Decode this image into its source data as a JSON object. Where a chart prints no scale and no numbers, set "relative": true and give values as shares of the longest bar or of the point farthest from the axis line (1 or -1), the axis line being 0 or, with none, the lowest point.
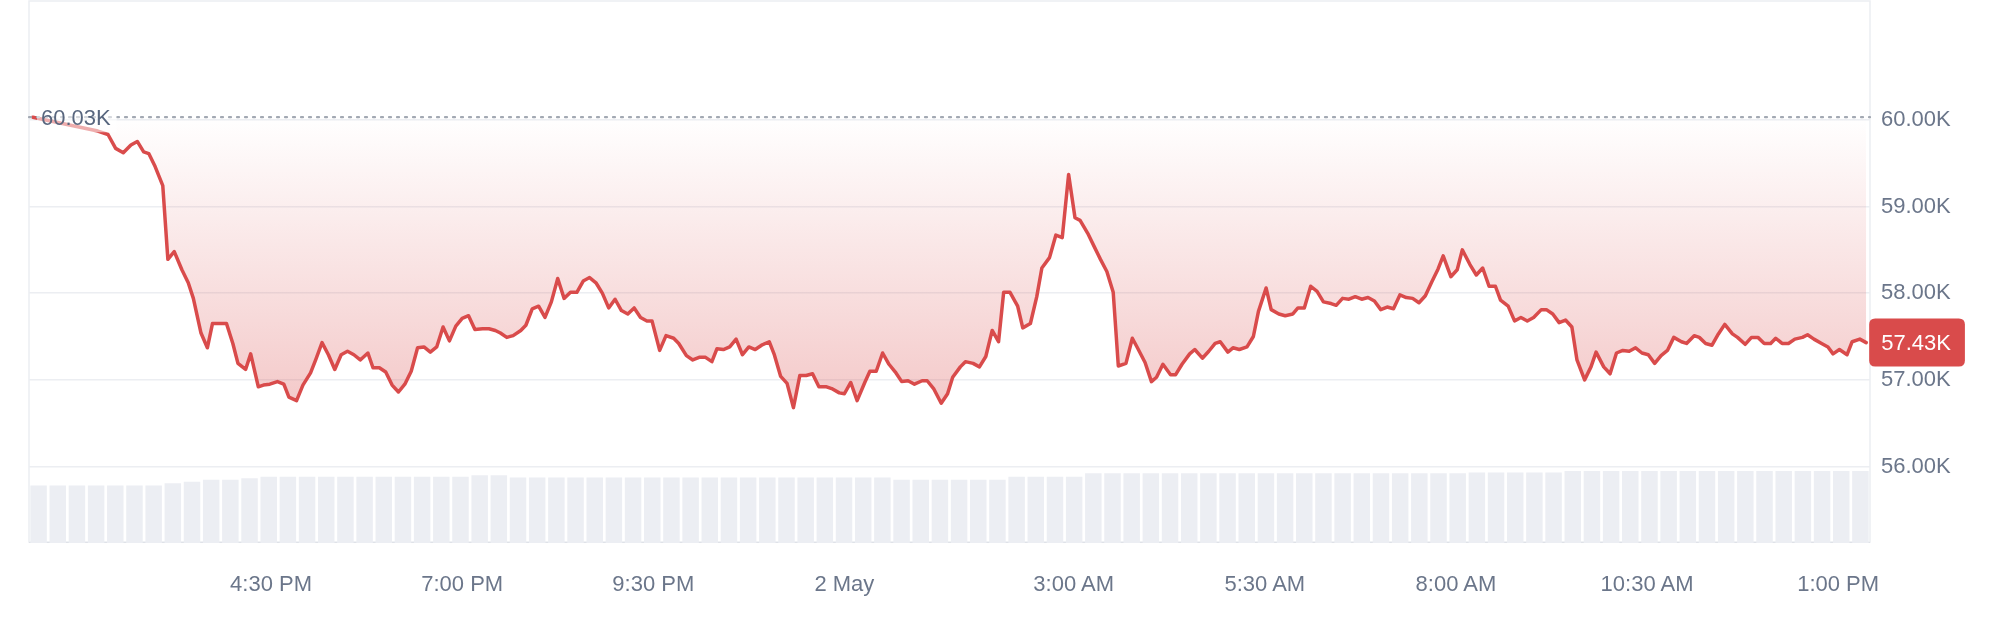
{
  "chart_data": [
    {
      "type": "line",
      "color": "#d94b4b",
      "x": [
        "--05-01T13:23",
        "--05-01T14:14",
        "--05-01T14:22",
        "--05-01T14:28",
        "--05-01T14:34",
        "--05-01T14:40",
        "--05-01T14:45",
        "--05-01T14:50",
        "--05-01T14:54",
        "--05-01T14:59",
        "--05-01T15:05",
        "--05-01T15:09",
        "--05-01T15:14",
        "--05-01T15:20",
        "--05-01T15:25",
        "--05-01T15:29",
        "--05-01T15:35",
        "--05-01T15:40",
        "--05-01T15:44",
        "--05-01T15:55",
        "--05-01T16:00",
        "--05-01T16:04",
        "--05-01T16:10",
        "--05-01T16:14",
        "--05-01T16:20",
        "--05-01T16:24",
        "--05-01T16:29",
        "--05-01T16:35",
        "--05-01T16:40",
        "--05-01T16:44",
        "--05-01T16:50",
        "--05-01T16:55",
        "--05-01T17:01",
        "--05-01T17:05",
        "--05-01T17:10",
        "--05-01T17:15",
        "--05-01T17:20",
        "--05-01T17:25",
        "--05-01T17:30",
        "--05-01T17:35",
        "--05-01T17:40",
        "--05-01T17:46",
        "--05-01T17:50",
        "--05-01T17:55",
        "--05-01T18:00",
        "--05-01T18:05",
        "--05-01T18:10",
        "--05-01T18:15",
        "--05-01T18:20",
        "--05-01T18:25",
        "--05-01T18:30",
        "--05-01T18:35",
        "--05-01T18:40",
        "--05-01T18:45",
        "--05-01T18:50",
        "--05-01T18:55",
        "--05-01T19:00",
        "--05-01T19:05",
        "--05-01T19:10",
        "--05-01T19:16",
        "--05-01T19:21",
        "--05-01T19:26",
        "--05-01T19:30",
        "--05-01T19:35",
        "--05-01T19:40",
        "--05-01T19:46",
        "--05-01T19:50",
        "--05-01T19:55",
        "--05-01T20:00",
        "--05-01T20:05",
        "--05-01T20:10",
        "--05-01T20:15",
        "--05-01T20:20",
        "--05-01T20:25",
        "--05-01T20:30",
        "--05-01T20:35",
        "--05-01T20:40",
        "--05-01T20:45",
        "--05-01T20:50",
        "--05-01T20:55",
        "--05-01T21:00",
        "--05-01T21:05",
        "--05-01T21:10",
        "--05-01T21:15",
        "--05-01T21:20",
        "--05-01T21:25",
        "--05-01T21:29",
        "--05-01T21:35",
        "--05-01T21:40",
        "--05-01T21:46",
        "--05-01T21:50",
        "--05-01T21:56",
        "--05-01T22:01",
        "--05-01T22:06",
        "--05-01T22:11",
        "--05-01T22:16",
        "--05-01T22:20",
        "--05-01T22:25",
        "--05-01T22:30",
        "--05-01T22:35",
        "--05-01T22:40",
        "--05-01T22:45",
        "--05-01T22:50",
        "--05-01T22:55",
        "--05-01T23:01",
        "--05-01T23:05",
        "--05-01T23:10",
        "--05-01T23:15",
        "--05-01T23:20",
        "--05-01T23:25",
        "--05-01T23:30",
        "--05-01T23:35",
        "--05-01T23:40",
        "--05-01T23:46",
        "--05-01T23:50",
        "--05-01T23:56",
        "--05-02T00:00",
        "--05-02T00:05",
        "--05-02T00:10",
        "--05-02T00:16",
        "--05-02T00:20",
        "--05-02T00:25",
        "--05-02T00:30",
        "--05-02T00:35",
        "--05-02T00:40",
        "--05-02T00:45",
        "--05-02T00:50",
        "--05-02T00:55",
        "--05-02T01:01",
        "--05-02T01:05",
        "--05-02T01:10",
        "--05-02T01:16",
        "--05-02T01:21",
        "--05-02T01:25",
        "--05-02T01:31",
        "--05-02T01:35",
        "--05-02T01:41",
        "--05-02T01:46",
        "--05-02T01:51",
        "--05-02T01:56",
        "--05-02T02:01",
        "--05-02T02:05",
        "--05-02T02:10",
        "--05-02T02:16",
        "--05-02T02:20",
        "--05-02T02:26",
        "--05-02T02:31",
        "--05-02T02:35",
        "--05-02T02:41",
        "--05-02T02:46",
        "--05-02T02:51",
        "--05-02T02:56",
        "--05-02T03:01",
        "--05-02T03:05",
        "--05-02T03:11",
        "--05-02T03:16",
        "--05-02T03:21",
        "--05-02T03:26",
        "--05-02T03:31",
        "--05-02T03:35",
        "--05-02T03:41",
        "--05-02T03:46",
        "--05-02T03:50",
        "--05-02T03:56",
        "--05-02T04:01",
        "--05-02T04:05",
        "--05-02T04:10",
        "--05-02T04:16",
        "--05-02T04:20",
        "--05-02T04:25",
        "--05-02T04:31",
        "--05-02T04:35",
        "--05-02T04:41",
        "--05-02T04:46",
        "--05-02T04:51",
        "--05-02T04:55",
        "--05-02T05:01",
        "--05-02T05:05",
        "--05-02T05:10",
        "--05-02T05:16",
        "--05-02T05:21",
        "--05-02T05:25",
        "--05-02T05:31",
        "--05-02T05:35",
        "--05-02T05:41",
        "--05-02T05:46",
        "--05-02T05:52",
        "--05-02T05:56",
        "--05-02T06:01",
        "--05-02T06:06",
        "--05-02T06:11",
        "--05-02T06:16",
        "--05-02T06:22",
        "--05-02T06:26",
        "--05-02T06:31",
        "--05-02T06:36",
        "--05-02T06:41",
        "--05-02T06:46",
        "--05-02T06:51",
        "--05-02T06:56",
        "--05-02T07:01",
        "--05-02T07:06",
        "--05-02T07:11",
        "--05-02T07:16",
        "--05-02T07:21",
        "--05-02T07:26",
        "--05-02T07:31",
        "--05-02T07:36",
        "--05-02T07:41",
        "--05-02T07:46",
        "--05-02T07:50",
        "--05-02T07:56",
        "--05-02T08:01",
        "--05-02T08:05",
        "--05-02T08:11",
        "--05-02T08:16",
        "--05-02T08:21",
        "--05-02T08:26",
        "--05-02T08:31",
        "--05-02T08:35",
        "--05-02T08:41",
        "--05-02T08:46",
        "--05-02T08:51",
        "--05-02T08:56",
        "--05-02T09:01",
        "--05-02T09:07",
        "--05-02T09:11",
        "--05-02T09:16",
        "--05-02T09:21",
        "--05-02T09:26",
        "--05-02T09:31",
        "--05-02T09:35",
        "--05-02T09:41",
        "--05-02T09:46",
        "--05-02T09:50",
        "--05-02T09:56",
        "--05-02T10:01",
        "--05-02T10:06",
        "--05-02T10:11",
        "--05-02T10:16",
        "--05-02T10:21",
        "--05-02T10:26",
        "--05-02T10:31",
        "--05-02T10:36",
        "--05-02T10:41",
        "--05-02T10:46",
        "--05-02T10:51",
        "--05-02T10:57",
        "--05-02T11:01",
        "--05-02T11:07",
        "--05-02T11:11",
        "--05-02T11:16",
        "--05-02T11:21",
        "--05-02T11:26",
        "--05-02T11:31",
        "--05-02T11:37",
        "--05-02T11:41",
        "--05-02T11:47",
        "--05-02T11:52",
        "--05-02T11:57",
        "--05-02T12:02",
        "--05-02T12:07",
        "--05-02T12:11",
        "--05-02T12:16",
        "--05-02T12:21",
        "--05-02T12:26",
        "--05-02T12:32",
        "--05-02T12:36",
        "--05-02T12:41",
        "--05-02T12:47",
        "--05-02T12:52",
        "--05-02T12:56",
        "--05-02T13:01",
        "--05-02T13:07",
        "--05-02T13:11",
        "--05-02T13:17",
        "--05-02T13:22"
      ],
      "values": [
        60030,
        59870,
        59830,
        59670,
        59620,
        59710,
        59750,
        59630,
        59610,
        59460,
        59240,
        58390,
        58480,
        58270,
        58120,
        57940,
        57540,
        57370,
        57650,
        57650,
        57420,
        57190,
        57120,
        57300,
        56920,
        56940,
        56950,
        56980,
        56950,
        56800,
        56760,
        56940,
        57080,
        57230,
        57430,
        57290,
        57120,
        57290,
        57330,
        57290,
        57230,
        57310,
        57140,
        57140,
        57090,
        56940,
        56860,
        56950,
        57100,
        57370,
        57380,
        57320,
        57380,
        57610,
        57450,
        57620,
        57710,
        57740,
        57580,
        57590,
        57590,
        57570,
        57540,
        57490,
        57510,
        57570,
        57630,
        57820,
        57850,
        57720,
        57900,
        58170,
        57940,
        58010,
        58010,
        58140,
        58180,
        58120,
        58000,
        57830,
        57930,
        57800,
        57760,
        57830,
        57720,
        57680,
        57680,
        57340,
        57510,
        57480,
        57420,
        57280,
        57230,
        57260,
        57260,
        57210,
        57360,
        57350,
        57380,
        57470,
        57290,
        57380,
        57350,
        57400,
        57440,
        57290,
        57040,
        56960,
        56680,
        57050,
        57050,
        57070,
        56920,
        56920,
        56900,
        56850,
        56840,
        56970,
        56760,
        56970,
        57100,
        57100,
        57310,
        57180,
        57090,
        56980,
        56990,
        56950,
        56990,
        56990,
        56900,
        56730,
        56840,
        57030,
        57150,
        57210,
        57190,
        57150,
        57270,
        57570,
        57440,
        58010,
        58010,
        57850,
        57600,
        57650,
        57960,
        58290,
        58410,
        58670,
        58640,
        59370,
        58870,
        58840,
        58690,
        58540,
        58390,
        58250,
        58010,
        57160,
        57190,
        57480,
        57370,
        57200,
        56980,
        57030,
        57180,
        57060,
        57060,
        57180,
        57300,
        57350,
        57250,
        57330,
        57420,
        57440,
        57320,
        57370,
        57350,
        57380,
        57500,
        57790,
        58060,
        57810,
        57760,
        57740,
        57760,
        57830,
        57830,
        58080,
        58020,
        57900,
        57880,
        57860,
        57940,
        57930,
        57960,
        57930,
        57950,
        57910,
        57810,
        57840,
        57820,
        57980,
        57950,
        57940,
        57890,
        57970,
        58130,
        58280,
        58430,
        58190,
        58270,
        58500,
        58330,
        58210,
        58290,
        58080,
        58080,
        57920,
        57850,
        57680,
        57720,
        57680,
        57720,
        57810,
        57810,
        57760,
        57660,
        57690,
        57610,
        57230,
        57000,
        57150,
        57320,
        57150,
        57070,
        57310,
        57340,
        57330,
        57370,
        57310,
        57290,
        57190,
        57280,
        57340,
        57490,
        57440,
        57420,
        57510,
        57490,
        57420,
        57400,
        57530,
        57640,
        57530,
        57490,
        57410,
        57490,
        57490,
        57420,
        57420,
        57480,
        57420,
        57420,
        57470,
        57490,
        57520,
        57470,
        57420,
        57380,
        57300,
        57350,
        57290,
        57440,
        57470,
        57430
      ],
      "value_labels": [
        null,
        null,
        null,
        null,
        null,
        null,
        null,
        null,
        null,
        null,
        null,
        null,
        null,
        null,
        null,
        null,
        null,
        null,
        null,
        null,
        null,
        null,
        null,
        null,
        null,
        null,
        null,
        null,
        null,
        null,
        null,
        null,
        null,
        null,
        null,
        null,
        null,
        null,
        null,
        null,
        null,
        null,
        null,
        null,
        null,
        null,
        null,
        null,
        null,
        null,
        null,
        null,
        null,
        null,
        null,
        null,
        null,
        null,
        null,
        null,
        null,
        null,
        null,
        null,
        null,
        null,
        null,
        null,
        null,
        null,
        null,
        null,
        null,
        null,
        null,
        null,
        null,
        null,
        null,
        null,
        null,
        null,
        null,
        null,
        null,
        null,
        null,
        null,
        null,
        null,
        null,
        null,
        null,
        null,
        null,
        null,
        null,
        null,
        null,
        null,
        null,
        null,
        null,
        null,
        null,
        null,
        null,
        null,
        null,
        null,
        null,
        null,
        null,
        null,
        null,
        null,
        null,
        null,
        null,
        null,
        null,
        null,
        null,
        null,
        null,
        null,
        null,
        null,
        null,
        null,
        null,
        null,
        null,
        null,
        null,
        null,
        null,
        null,
        null,
        null,
        null,
        null,
        null,
        null,
        null,
        null,
        null,
        null,
        null,
        null,
        null,
        null,
        null,
        null,
        null,
        null,
        null,
        null,
        null,
        null,
        null,
        null,
        null,
        null,
        null,
        null,
        null,
        null,
        null,
        null,
        null,
        null,
        null,
        null,
        null,
        null,
        null,
        null,
        null,
        null,
        null,
        null,
        null,
        null,
        null,
        null,
        null,
        null,
        null,
        null,
        null,
        null,
        null,
        null,
        null,
        null,
        null,
        null,
        null,
        null,
        null,
        null,
        null,
        null,
        null,
        null,
        null,
        null,
        null,
        null,
        null,
        null,
        null,
        null,
        null,
        null,
        null,
        null,
        null,
        null,
        null,
        null,
        null,
        null,
        null,
        null,
        null,
        null,
        null,
        null,
        null,
        null,
        null,
        null,
        null,
        null,
        null,
        null,
        null,
        null,
        null,
        null,
        null,
        null,
        null,
        null,
        null,
        null,
        null,
        null,
        null,
        null,
        null,
        null,
        null,
        null,
        null,
        null,
        null,
        null,
        null,
        null,
        null,
        null,
        null,
        null,
        null,
        null,
        null,
        null,
        null,
        null,
        null,
        null,
        null,
        null,
        "57.43K"
      ],
      "xlim": [
        "--05-01T13:20",
        "--05-02T13:25"
      ],
      "xticks": [
        {
          "value": "--05-01T16:30",
          "label": "4:30 PM"
        },
        {
          "value": "--05-01T19:00",
          "label": "7:00 PM"
        },
        {
          "value": "--05-01T21:30",
          "label": "9:30 PM"
        },
        {
          "value": "--05-02",
          "label": "2 May"
        },
        {
          "value": "--05-02T03:00",
          "label": "3:00 AM"
        },
        {
          "value": "--05-02T05:30",
          "label": "5:30 AM"
        },
        {
          "value": "--05-02T08:00",
          "label": "8:00 AM"
        },
        {
          "value": "--05-02T10:30",
          "label": "10:30 AM"
        },
        {
          "value": "--05-02T13:00",
          "label": "1:00 PM"
        }
      ],
      "ylim": [
        55130,
        61370
      ],
      "yticks": [
        {
          "value": 56000,
          "label": "56.00K"
        },
        {
          "value": 57000,
          "label": "57.00K"
        },
        {
          "value": 58000,
          "label": "58.00K"
        },
        {
          "value": 59000,
          "label": "59.00K"
        },
        {
          "value": 60000,
          "label": "60.00K"
        }
      ],
      "grid": "y",
      "ref_lines": [
        {
          "axis": "y",
          "value": 60030,
          "label": "60.03K",
          "line_style": "dotted",
          "color": "#a3a9b3"
        }
      ]
    },
    {
      "type": "bar",
      "relative": true,
      "color": "#eceef3",
      "tick_labels": false,
      "categories": [
        null,
        null,
        null,
        null,
        null,
        null,
        null,
        null,
        null,
        null,
        null,
        null,
        null,
        null,
        null,
        null,
        null,
        null,
        null,
        null,
        null,
        null,
        null,
        null,
        null,
        null,
        null,
        null,
        null,
        null,
        null,
        null,
        null,
        null,
        null,
        null,
        null,
        null,
        null,
        null,
        null,
        null,
        null,
        null,
        null,
        null,
        null,
        null,
        null,
        null,
        null,
        null,
        null,
        null,
        null,
        null,
        null,
        null,
        null,
        null,
        null,
        null,
        null,
        null,
        null,
        null,
        null,
        null,
        null,
        null,
        null,
        null,
        null,
        null,
        null,
        null,
        null,
        null,
        null,
        null,
        null,
        null,
        null,
        null,
        null,
        null,
        null,
        null,
        null,
        null,
        null,
        null,
        null,
        null,
        null,
        null
      ],
      "values": [
        0.8,
        0.8,
        0.8,
        0.8,
        0.8,
        0.8,
        0.8,
        0.83,
        0.85,
        0.88,
        0.88,
        0.9,
        0.92,
        0.92,
        0.92,
        0.92,
        0.92,
        0.92,
        0.92,
        0.92,
        0.92,
        0.92,
        0.92,
        0.94,
        0.94,
        0.91,
        0.91,
        0.91,
        0.91,
        0.91,
        0.91,
        0.91,
        0.91,
        0.91,
        0.91,
        0.91,
        0.91,
        0.91,
        0.91,
        0.91,
        0.91,
        0.91,
        0.91,
        0.91,
        0.91,
        0.88,
        0.88,
        0.88,
        0.88,
        0.88,
        0.88,
        0.92,
        0.92,
        0.92,
        0.92,
        0.97,
        0.97,
        0.97,
        0.97,
        0.97,
        0.97,
        0.97,
        0.97,
        0.97,
        0.97,
        0.97,
        0.97,
        0.97,
        0.97,
        0.97,
        0.97,
        0.97,
        0.97,
        0.97,
        0.97,
        0.98,
        0.98,
        0.98,
        0.98,
        0.98,
        1,
        1,
        1,
        1,
        1,
        1,
        1,
        1,
        1,
        1,
        1,
        1,
        1,
        1,
        1,
        1
      ]
    }
  ]
}
